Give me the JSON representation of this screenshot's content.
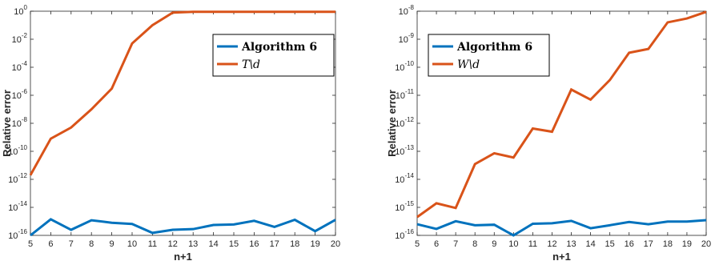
{
  "chart_data": [
    {
      "type": "line",
      "scale_y": "log",
      "xlabel": "n+1",
      "ylabel": "Relative error",
      "xlim": [
        5,
        20
      ],
      "ylim_exp": [
        -16,
        0
      ],
      "x_ticks": [
        "5",
        "6",
        "7",
        "8",
        "9",
        "10",
        "11",
        "12",
        "13",
        "14",
        "15",
        "16",
        "17",
        "18",
        "19",
        "20"
      ],
      "y_tick_exponents": [
        0,
        -2,
        -4,
        -6,
        -8,
        -10,
        -12,
        -14,
        -16
      ],
      "legend_position": "top-right",
      "x": [
        5,
        6,
        7,
        8,
        9,
        10,
        11,
        12,
        13,
        14,
        15,
        16,
        17,
        18,
        19,
        20
      ],
      "series": [
        {
          "name": "Algorithm 6",
          "color": "#0072BD",
          "values": [
            1e-16,
            1.4e-15,
            2.5e-16,
            1.2e-15,
            8e-16,
            6.5e-16,
            1.5e-16,
            2.5e-16,
            2.8e-16,
            5.5e-16,
            6e-16,
            1.1e-15,
            4e-16,
            1.3e-15,
            2e-16,
            1.3e-15
          ]
        },
        {
          "name": "T\\d",
          "color": "#D95319",
          "values": [
            2e-12,
            8e-10,
            5e-09,
            1e-07,
            3e-06,
            0.005,
            0.1,
            0.8,
            0.9,
            0.9,
            0.9,
            0.9,
            0.9,
            0.9,
            0.9,
            0.9
          ]
        }
      ]
    },
    {
      "type": "line",
      "scale_y": "log",
      "xlabel": "n+1",
      "ylabel": "Relative error",
      "xlim": [
        5,
        20
      ],
      "ylim_exp": [
        -16,
        -8
      ],
      "x_ticks": [
        "5",
        "6",
        "7",
        "8",
        "9",
        "10",
        "11",
        "12",
        "13",
        "14",
        "15",
        "16",
        "17",
        "18",
        "19",
        "20"
      ],
      "y_tick_exponents": [
        -8,
        -9,
        -10,
        -11,
        -12,
        -13,
        -14,
        -15,
        -16
      ],
      "legend_position": "top-right",
      "x": [
        5,
        6,
        7,
        8,
        9,
        10,
        11,
        12,
        13,
        14,
        15,
        16,
        17,
        18,
        19,
        20
      ],
      "series": [
        {
          "name": "Algorithm 6",
          "color": "#0072BD",
          "values": [
            2.5e-16,
            1.7e-16,
            3.2e-16,
            2.3e-16,
            2.4e-16,
            1e-16,
            2.6e-16,
            2.7e-16,
            3.3e-16,
            1.8e-16,
            2.3e-16,
            3e-16,
            2.5e-16,
            3.1e-16,
            3.1e-16,
            3.5e-16
          ]
        },
        {
          "name": "W\\d",
          "color": "#D95319",
          "values": [
            4.5e-16,
            1.4e-15,
            9.5e-16,
            3.5e-14,
            8.5e-14,
            6e-14,
            6.5e-13,
            5e-13,
            1.6e-11,
            7e-12,
            3.5e-11,
            3.3e-10,
            4.5e-10,
            4e-09,
            5.5e-09,
            9.5e-09
          ]
        }
      ]
    }
  ]
}
